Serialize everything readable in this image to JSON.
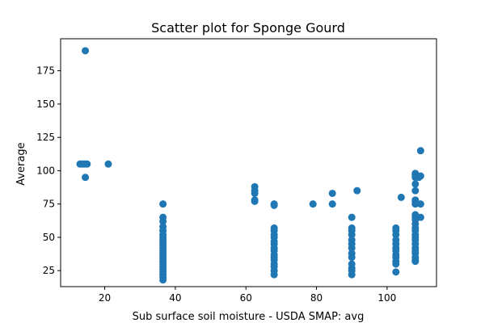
{
  "chart_data": {
    "type": "scatter",
    "title": "Scatter plot for Sponge Gourd",
    "xlabel": "Sub surface soil moisture - USDA SMAP: avg",
    "ylabel": "Average",
    "xlim": [
      7.5,
      114
    ],
    "ylim": [
      13,
      199
    ],
    "xticks": [
      20,
      40,
      60,
      80,
      100
    ],
    "yticks": [
      25,
      50,
      75,
      100,
      125,
      150,
      175
    ],
    "grid": false,
    "legend": "none",
    "marker_color": "#1f77b4",
    "series": [
      {
        "points": [
          [
            14.5,
            190
          ],
          [
            13,
            105
          ],
          [
            13.5,
            105
          ],
          [
            14,
            105
          ],
          [
            14.5,
            105
          ],
          [
            15,
            105
          ],
          [
            14.5,
            95
          ],
          [
            21,
            105
          ],
          [
            36.5,
            75
          ],
          [
            36.5,
            65
          ],
          [
            36.5,
            62
          ],
          [
            36.5,
            58
          ],
          [
            36.5,
            55
          ],
          [
            36.5,
            52
          ],
          [
            36.5,
            50
          ],
          [
            36.5,
            48
          ],
          [
            36.5,
            46
          ],
          [
            36.5,
            44
          ],
          [
            36.5,
            42
          ],
          [
            36.5,
            40
          ],
          [
            36.5,
            38
          ],
          [
            36.5,
            36
          ],
          [
            36.5,
            34
          ],
          [
            36.5,
            32
          ],
          [
            36.5,
            30
          ],
          [
            36.5,
            28
          ],
          [
            36.5,
            26
          ],
          [
            36.5,
            24
          ],
          [
            36.5,
            22
          ],
          [
            36.5,
            20
          ],
          [
            36.5,
            18
          ],
          [
            62.5,
            88
          ],
          [
            62.5,
            85
          ],
          [
            62.5,
            83
          ],
          [
            62.5,
            78
          ],
          [
            62.5,
            77
          ],
          [
            68,
            75
          ],
          [
            68,
            74
          ],
          [
            68,
            57
          ],
          [
            68,
            55
          ],
          [
            68,
            52
          ],
          [
            68,
            50
          ],
          [
            68,
            47
          ],
          [
            68,
            45
          ],
          [
            68,
            42
          ],
          [
            68,
            40
          ],
          [
            68,
            37
          ],
          [
            68,
            35
          ],
          [
            68,
            33
          ],
          [
            68,
            30
          ],
          [
            68,
            28
          ],
          [
            68,
            25
          ],
          [
            68,
            22
          ],
          [
            79,
            75
          ],
          [
            84.5,
            83
          ],
          [
            84.5,
            75
          ],
          [
            91.5,
            85
          ],
          [
            90,
            65
          ],
          [
            90,
            57
          ],
          [
            90,
            55
          ],
          [
            90,
            52
          ],
          [
            90,
            48
          ],
          [
            90,
            45
          ],
          [
            90,
            42
          ],
          [
            90,
            38
          ],
          [
            90,
            35
          ],
          [
            90,
            30
          ],
          [
            90,
            27
          ],
          [
            90,
            25
          ],
          [
            90,
            22
          ],
          [
            102.5,
            57
          ],
          [
            102.5,
            55
          ],
          [
            102.5,
            52
          ],
          [
            102.5,
            48
          ],
          [
            102.5,
            45
          ],
          [
            102.5,
            42
          ],
          [
            102.5,
            40
          ],
          [
            102.5,
            37
          ],
          [
            102.5,
            35
          ],
          [
            102.5,
            32
          ],
          [
            102.5,
            30
          ],
          [
            102.5,
            24
          ],
          [
            104,
            80
          ],
          [
            108,
            98
          ],
          [
            108,
            97
          ],
          [
            108,
            96
          ],
          [
            108,
            95
          ],
          [
            108,
            90
          ],
          [
            108,
            85
          ],
          [
            108,
            78
          ],
          [
            108,
            77
          ],
          [
            108,
            75
          ],
          [
            108,
            67
          ],
          [
            108,
            65
          ],
          [
            108,
            63
          ],
          [
            108,
            60
          ],
          [
            108,
            57
          ],
          [
            108,
            55
          ],
          [
            108,
            52
          ],
          [
            108,
            50
          ],
          [
            108,
            48
          ],
          [
            108,
            45
          ],
          [
            108,
            42
          ],
          [
            108,
            40
          ],
          [
            108,
            38
          ],
          [
            108,
            35
          ],
          [
            108,
            33
          ],
          [
            108,
            32
          ],
          [
            109,
            95
          ],
          [
            109.5,
            115
          ],
          [
            109.5,
            96
          ],
          [
            109.5,
            75
          ],
          [
            109.5,
            65
          ]
        ]
      }
    ]
  }
}
